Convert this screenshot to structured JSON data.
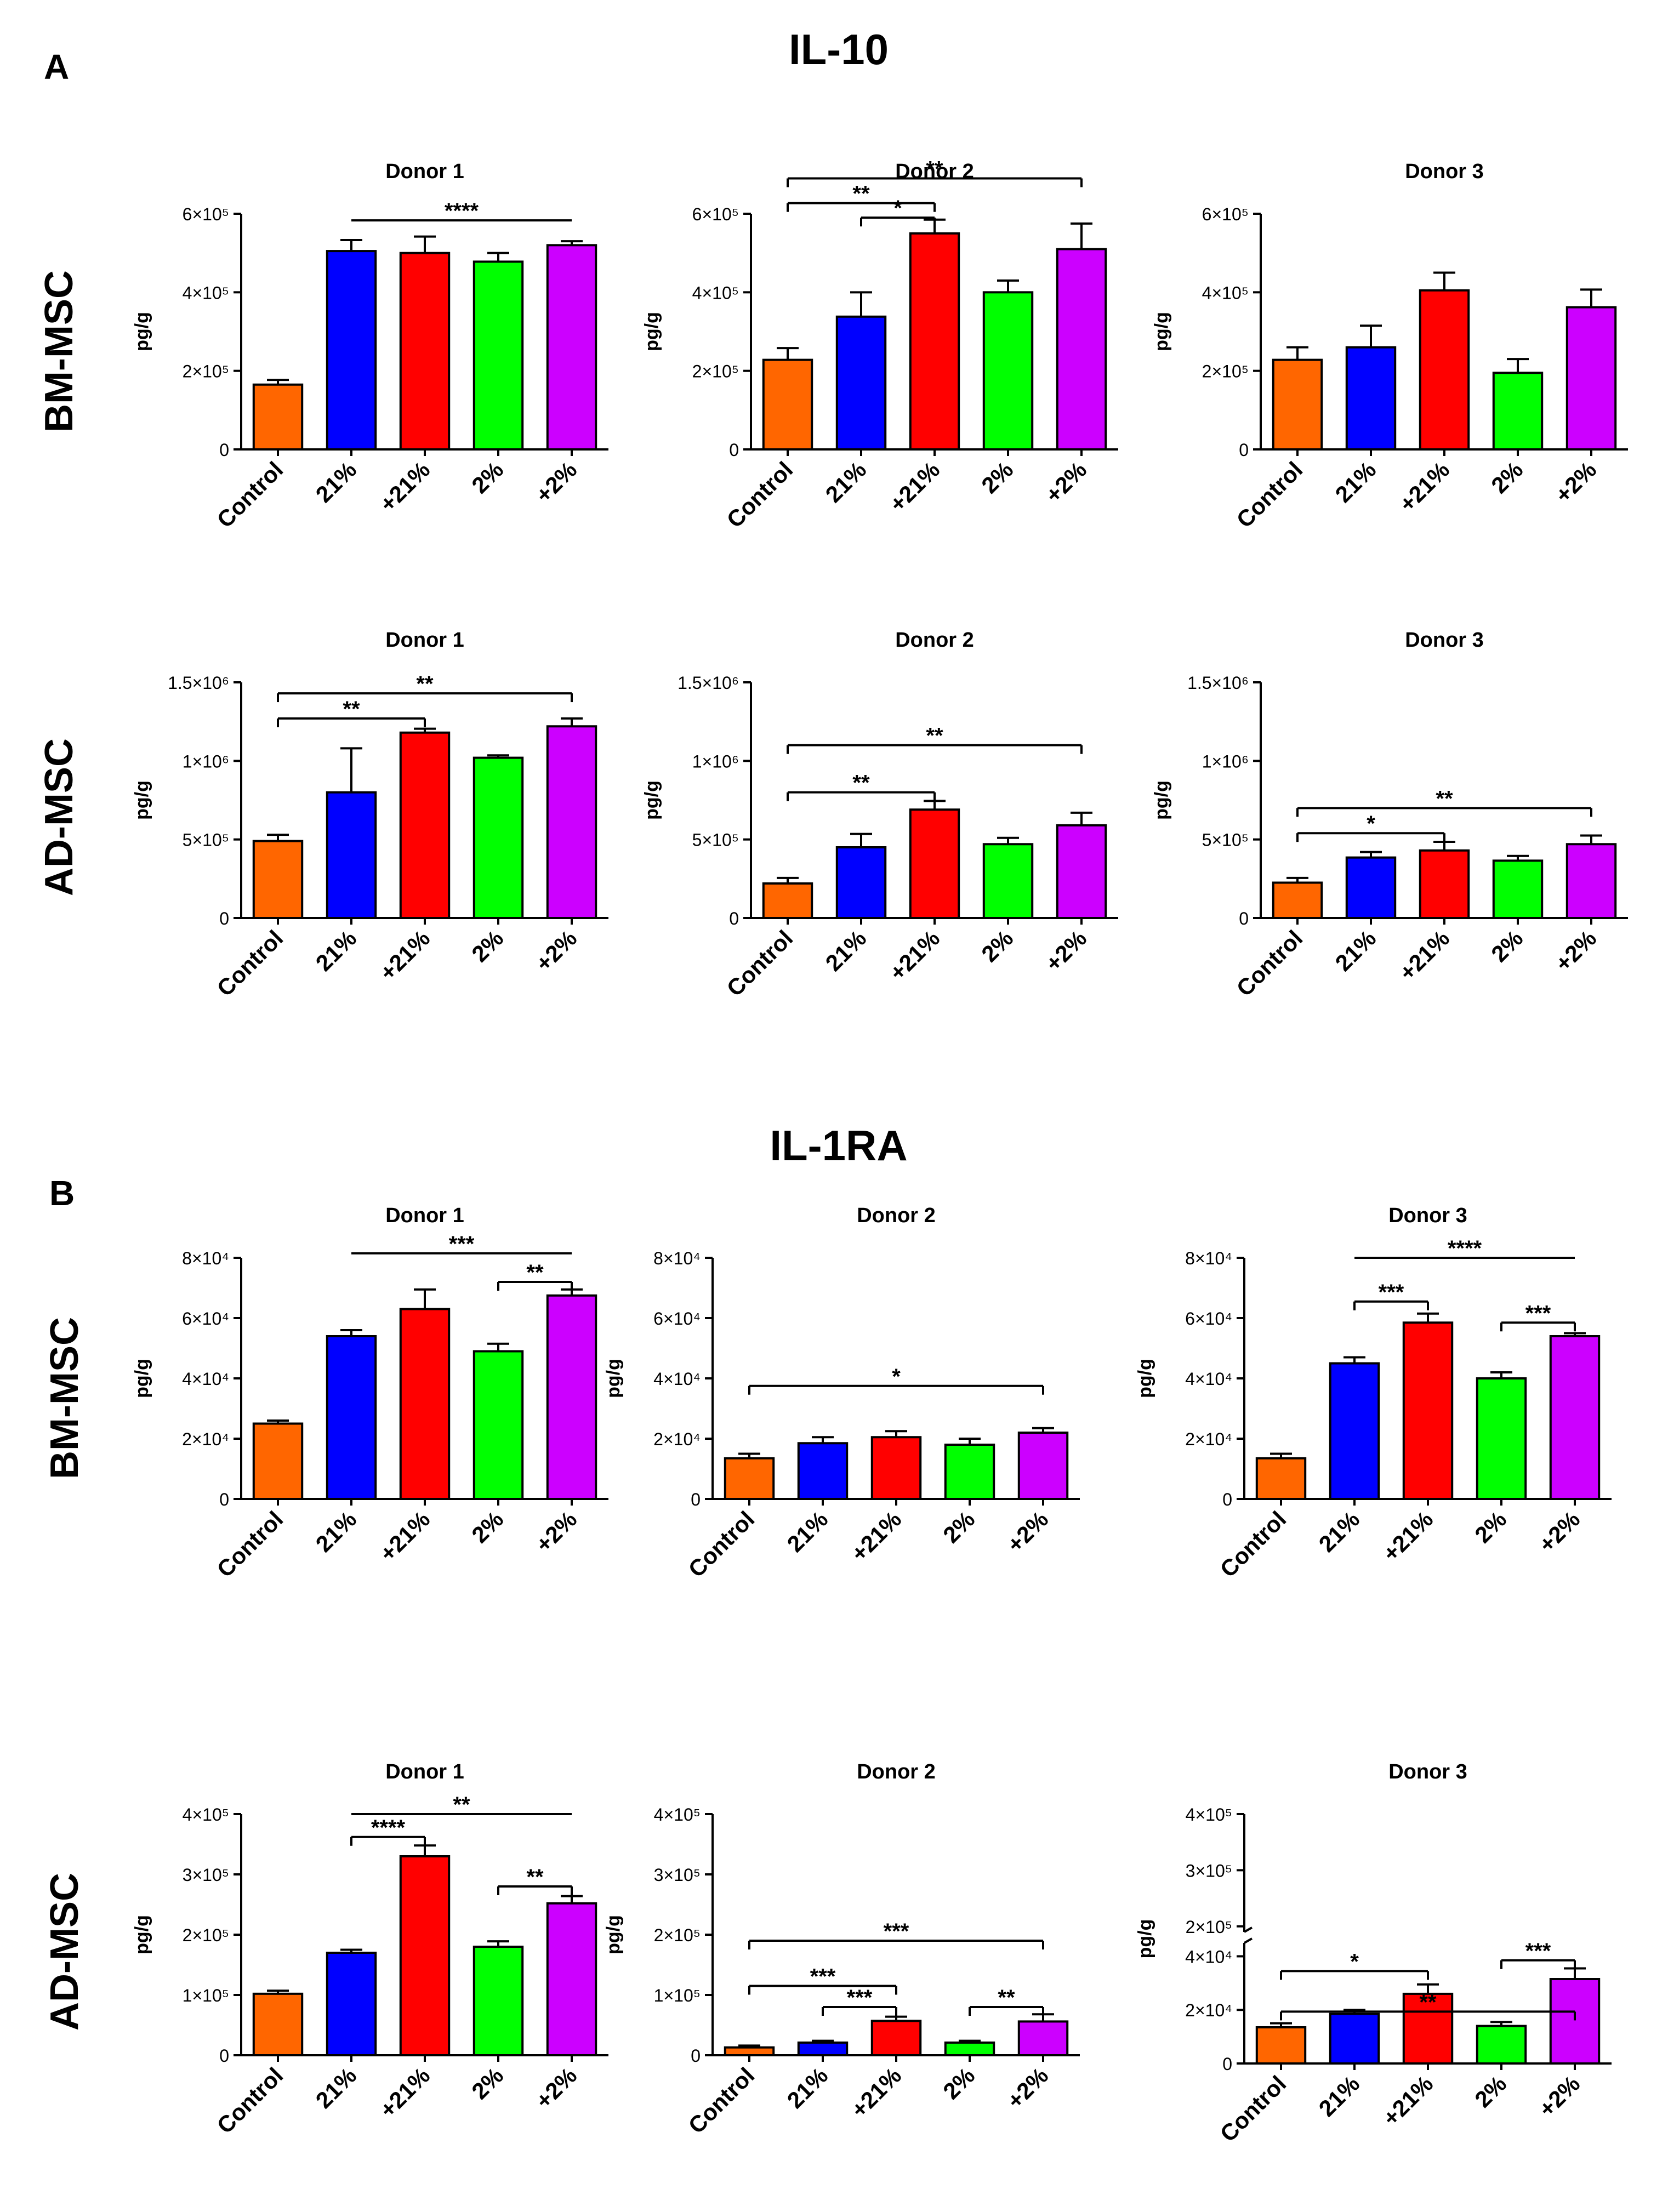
{
  "panels": [
    {
      "letter": "A",
      "title": "IL-10"
    },
    {
      "letter": "B",
      "title": "IL-1RA"
    }
  ],
  "row_labels": [
    "BM-MSC",
    "AD-MSC",
    "BM-MSC",
    "AD-MSC"
  ],
  "colors": {
    "Control": "#ff6600",
    "21%": "#0000ff",
    "+21%": "#ff0000",
    "2%": "#00ff00",
    "+2%": "#cc00ff"
  },
  "chart_data": [
    {
      "type": "bar",
      "title": "Donor 1",
      "panel": "A",
      "cell": "BM-MSC",
      "ylabel": "pg/g",
      "categories": [
        "Control",
        "21%",
        "+21%",
        "2%",
        "+2%"
      ],
      "values": [
        165000,
        505000,
        500000,
        478000,
        520000
      ],
      "errors": [
        12000,
        28000,
        42000,
        22000,
        10000
      ],
      "ylim": [
        0,
        600000
      ],
      "yticks": [
        {
          "v": 0,
          "label": "0"
        },
        {
          "v": 200000,
          "label": "2×10⁵"
        },
        {
          "v": 400000,
          "label": "4×10⁵"
        },
        {
          "v": 600000,
          "label": "6×10⁵"
        }
      ],
      "brackets": [
        {
          "from": 1,
          "to": 4,
          "label": "****",
          "level": 583000,
          "drop": false
        }
      ]
    },
    {
      "type": "bar",
      "title": "Donor 2",
      "panel": "A",
      "cell": "BM-MSC",
      "ylabel": "pg/g",
      "categories": [
        "Control",
        "21%",
        "+21%",
        "2%",
        "+2%"
      ],
      "values": [
        228000,
        338000,
        550000,
        400000,
        510000
      ],
      "errors": [
        30000,
        62000,
        35000,
        30000,
        65000
      ],
      "ylim": [
        0,
        600000
      ],
      "yticks": [
        {
          "v": 0,
          "label": "0"
        },
        {
          "v": 200000,
          "label": "2×10⁵"
        },
        {
          "v": 400000,
          "label": "4×10⁵"
        },
        {
          "v": 600000,
          "label": "6×10⁵"
        }
      ],
      "brackets": [
        {
          "from": 0,
          "to": 4,
          "label": "**",
          "level": 690000,
          "drop": true
        },
        {
          "from": 0,
          "to": 2,
          "label": "**",
          "level": 627000,
          "drop": true
        },
        {
          "from": 1,
          "to": 2,
          "label": "*",
          "level": 590000,
          "drop": true
        }
      ]
    },
    {
      "type": "bar",
      "title": "Donor 3",
      "panel": "A",
      "cell": "BM-MSC",
      "ylabel": "pg/g",
      "categories": [
        "Control",
        "21%",
        "+21%",
        "2%",
        "+2%"
      ],
      "values": [
        228000,
        260000,
        405000,
        195000,
        362000
      ],
      "errors": [
        32000,
        55000,
        45000,
        35000,
        45000
      ],
      "ylim": [
        0,
        600000
      ],
      "yticks": [
        {
          "v": 0,
          "label": "0"
        },
        {
          "v": 200000,
          "label": "2×10⁵"
        },
        {
          "v": 400000,
          "label": "4×10⁵"
        },
        {
          "v": 600000,
          "label": "6×10⁵"
        }
      ],
      "brackets": []
    },
    {
      "type": "bar",
      "title": "Donor 1",
      "panel": "A",
      "cell": "AD-MSC",
      "ylabel": "pg/g",
      "categories": [
        "Control",
        "21%",
        "+21%",
        "2%",
        "+2%"
      ],
      "values": [
        490000,
        800000,
        1180000,
        1020000,
        1220000
      ],
      "errors": [
        40000,
        280000,
        25000,
        15000,
        50000
      ],
      "ylim": [
        0,
        1500000
      ],
      "yticks": [
        {
          "v": 0,
          "label": "0"
        },
        {
          "v": 500000,
          "label": "5×10⁵"
        },
        {
          "v": 1000000,
          "label": "1×10⁶"
        },
        {
          "v": 1500000,
          "label": "1.5×10⁶"
        }
      ],
      "brackets": [
        {
          "from": 0,
          "to": 4,
          "label": "**",
          "level": 1430000,
          "drop": true
        },
        {
          "from": 0,
          "to": 2,
          "label": "**",
          "level": 1270000,
          "drop": true
        }
      ]
    },
    {
      "type": "bar",
      "title": "Donor 2",
      "panel": "A",
      "cell": "AD-MSC",
      "ylabel": "pg/g",
      "categories": [
        "Control",
        "21%",
        "+21%",
        "2%",
        "+2%"
      ],
      "values": [
        220000,
        450000,
        690000,
        470000,
        590000
      ],
      "errors": [
        35000,
        85000,
        55000,
        40000,
        80000
      ],
      "ylim": [
        0,
        1500000
      ],
      "yticks": [
        {
          "v": 0,
          "label": "0"
        },
        {
          "v": 500000,
          "label": "5×10⁵"
        },
        {
          "v": 1000000,
          "label": "1×10⁶"
        },
        {
          "v": 1500000,
          "label": "1.5×10⁶"
        }
      ],
      "brackets": [
        {
          "from": 0,
          "to": 4,
          "label": "**",
          "level": 1100000,
          "drop": true
        },
        {
          "from": 0,
          "to": 2,
          "label": "**",
          "level": 800000,
          "drop": true
        }
      ]
    },
    {
      "type": "bar",
      "title": "Donor 3",
      "panel": "A",
      "cell": "AD-MSC",
      "ylabel": "pg/g",
      "categories": [
        "Control",
        "21%",
        "+21%",
        "2%",
        "+2%"
      ],
      "values": [
        225000,
        385000,
        430000,
        365000,
        470000
      ],
      "errors": [
        30000,
        35000,
        55000,
        30000,
        55000
      ],
      "ylim": [
        0,
        1500000
      ],
      "yticks": [
        {
          "v": 0,
          "label": "0"
        },
        {
          "v": 500000,
          "label": "5×10⁵"
        },
        {
          "v": 1000000,
          "label": "1×10⁶"
        },
        {
          "v": 1500000,
          "label": "1.5×10⁶"
        }
      ],
      "brackets": [
        {
          "from": 0,
          "to": 4,
          "label": "**",
          "level": 700000,
          "drop": true
        },
        {
          "from": 0,
          "to": 2,
          "label": "*",
          "level": 540000,
          "drop": true
        }
      ]
    },
    {
      "type": "bar",
      "title": "Donor 1",
      "panel": "B",
      "cell": "BM-MSC",
      "ylabel": "pg/g",
      "categories": [
        "Control",
        "21%",
        "+21%",
        "2%",
        "+2%"
      ],
      "values": [
        25000,
        54000,
        63000,
        49000,
        67500
      ],
      "errors": [
        1000,
        2000,
        6500,
        2500,
        2000
      ],
      "ylim": [
        0,
        80000
      ],
      "yticks": [
        {
          "v": 0,
          "label": "0"
        },
        {
          "v": 20000,
          "label": "2×10⁴"
        },
        {
          "v": 40000,
          "label": "4×10⁴"
        },
        {
          "v": 60000,
          "label": "6×10⁴"
        },
        {
          "v": 80000,
          "label": "8×10⁴"
        }
      ],
      "brackets": [
        {
          "from": 1,
          "to": 4,
          "label": "***",
          "level": 81500,
          "drop": false
        },
        {
          "from": 3,
          "to": 4,
          "label": "**",
          "level": 72000,
          "drop": true
        }
      ]
    },
    {
      "type": "bar",
      "title": "Donor 2",
      "panel": "B",
      "cell": "BM-MSC",
      "ylabel": "pg/g",
      "categories": [
        "Control",
        "21%",
        "+21%",
        "2%",
        "+2%"
      ],
      "values": [
        13500,
        18500,
        20500,
        18000,
        22000
      ],
      "errors": [
        1500,
        2000,
        2000,
        2000,
        1500
      ],
      "ylim": [
        0,
        80000
      ],
      "yticks": [
        {
          "v": 0,
          "label": "0"
        },
        {
          "v": 20000,
          "label": "2×10⁴"
        },
        {
          "v": 40000,
          "label": "4×10⁴"
        },
        {
          "v": 60000,
          "label": "6×10⁴"
        },
        {
          "v": 80000,
          "label": "8×10⁴"
        }
      ],
      "brackets": [
        {
          "from": 0,
          "to": 4,
          "label": "*",
          "level": 37500,
          "drop": true
        }
      ]
    },
    {
      "type": "bar",
      "title": "Donor 3",
      "panel": "B",
      "cell": "BM-MSC",
      "ylabel": "pg/g",
      "categories": [
        "Control",
        "21%",
        "+21%",
        "2%",
        "+2%"
      ],
      "values": [
        13500,
        45000,
        58500,
        40000,
        54000
      ],
      "errors": [
        1500,
        2000,
        3000,
        2000,
        1000
      ],
      "ylim": [
        0,
        80000
      ],
      "yticks": [
        {
          "v": 0,
          "label": "0"
        },
        {
          "v": 20000,
          "label": "2×10⁴"
        },
        {
          "v": 40000,
          "label": "4×10⁴"
        },
        {
          "v": 60000,
          "label": "6×10⁴"
        },
        {
          "v": 80000,
          "label": "8×10⁴"
        }
      ],
      "brackets": [
        {
          "from": 1,
          "to": 4,
          "label": "****",
          "level": 80000,
          "drop": false
        },
        {
          "from": 1,
          "to": 2,
          "label": "***",
          "level": 65500,
          "drop": true
        },
        {
          "from": 3,
          "to": 4,
          "label": "***",
          "level": 58500,
          "drop": true
        }
      ]
    },
    {
      "type": "bar",
      "title": "Donor 1",
      "panel": "B",
      "cell": "AD-MSC",
      "ylabel": "pg/g",
      "categories": [
        "Control",
        "21%",
        "+21%",
        "2%",
        "+2%"
      ],
      "values": [
        102000,
        170000,
        330000,
        180000,
        252000
      ],
      "errors": [
        5000,
        5000,
        18000,
        9000,
        12000
      ],
      "ylim": [
        0,
        400000
      ],
      "yticks": [
        {
          "v": 0,
          "label": "0"
        },
        {
          "v": 100000,
          "label": "1×10⁵"
        },
        {
          "v": 200000,
          "label": "2×10⁵"
        },
        {
          "v": 300000,
          "label": "3×10⁵"
        },
        {
          "v": 400000,
          "label": "4×10⁵"
        }
      ],
      "brackets": [
        {
          "from": 1,
          "to": 4,
          "label": "**",
          "level": 400000,
          "drop": false
        },
        {
          "from": 1,
          "to": 2,
          "label": "****",
          "level": 362000,
          "drop": true
        },
        {
          "from": 3,
          "to": 4,
          "label": "**",
          "level": 280000,
          "drop": true
        }
      ]
    },
    {
      "type": "bar",
      "title": "Donor 2",
      "panel": "B",
      "cell": "AD-MSC",
      "ylabel": "pg/g",
      "categories": [
        "Control",
        "21%",
        "+21%",
        "2%",
        "+2%"
      ],
      "values": [
        13000,
        21000,
        57000,
        21000,
        56000
      ],
      "errors": [
        3000,
        3000,
        7000,
        3000,
        12000
      ],
      "ylim": [
        0,
        400000
      ],
      "yticks": [
        {
          "v": 0,
          "label": "0"
        },
        {
          "v": 100000,
          "label": "1×10⁵"
        },
        {
          "v": 200000,
          "label": "2×10⁵"
        },
        {
          "v": 300000,
          "label": "3×10⁵"
        },
        {
          "v": 400000,
          "label": "4×10⁵"
        }
      ],
      "brackets": [
        {
          "from": 0,
          "to": 4,
          "label": "***",
          "level": 190000,
          "drop": true
        },
        {
          "from": 0,
          "to": 2,
          "label": "***",
          "level": 115000,
          "drop": true
        },
        {
          "from": 1,
          "to": 2,
          "label": "***",
          "level": 80000,
          "drop": true
        },
        {
          "from": 3,
          "to": 4,
          "label": "**",
          "level": 80000,
          "drop": true
        }
      ]
    },
    {
      "type": "bar",
      "title": "Donor 3",
      "panel": "B",
      "cell": "AD-MSC",
      "ylabel": "pg/g",
      "categories": [
        "Control",
        "21%",
        "+21%",
        "2%",
        "+2%"
      ],
      "values": [
        13500,
        18500,
        26000,
        14000,
        31500
      ],
      "errors": [
        1500,
        1500,
        3500,
        1500,
        4000
      ],
      "axis_break": true,
      "ylim": [
        0,
        45000
      ],
      "ylim_upper": [
        190000,
        400000
      ],
      "yticks": [
        {
          "v": 0,
          "label": "0"
        },
        {
          "v": 20000,
          "label": "2×10⁴"
        },
        {
          "v": 40000,
          "label": "4×10⁴"
        }
      ],
      "yticks_upper": [
        {
          "v": 200000,
          "label": "2×10⁵"
        },
        {
          "v": 300000,
          "label": "3×10⁵"
        },
        {
          "v": 400000,
          "label": "4×10⁵"
        }
      ],
      "brackets": [
        {
          "from": 0,
          "to": 4,
          "label": "**",
          "level": 48000,
          "drop": true
        },
        {
          "from": 0,
          "to": 2,
          "label": "*",
          "level": 34500,
          "drop": true
        },
        {
          "from": 3,
          "to": 4,
          "label": "***",
          "level": 38500,
          "drop": true
        }
      ]
    }
  ]
}
